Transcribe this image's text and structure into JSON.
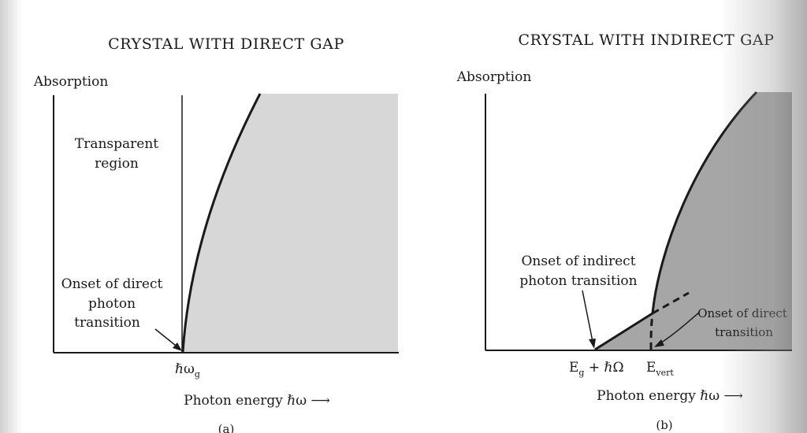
{
  "panel_a": {
    "title": "CRYSTAL WITH DIRECT GAP",
    "y_axis_label": "Absorption",
    "region_label_line1": "Transparent",
    "region_label_line2": "region",
    "onset_line1": "Onset of direct",
    "onset_line2": "photon",
    "onset_line3": "transition",
    "x_tick": "ℏω",
    "x_tick_sub": "g",
    "x_axis_label": "Photon energy ℏω ⟶",
    "caption": "(a)"
  },
  "panel_b": {
    "title": "CRYSTAL WITH INDIRECT GAP",
    "y_axis_label": "Absorption",
    "indirect_line1": "Onset of indirect",
    "indirect_line2": "photon transition",
    "direct_line1": "Onset of direct",
    "direct_line2": "transition",
    "x_tick_1": "E",
    "x_tick_1_sub": "g",
    "x_tick_1_rest": " + ℏΩ",
    "x_tick_2": "E",
    "x_tick_2_sub": "vert",
    "x_axis_label": "Photon energy ℏω ⟶",
    "caption": "(b)"
  },
  "colors": {
    "ink": "#1a1a1a",
    "shade_a": "#d7d7d7",
    "shade_b": "#a6a6a6"
  }
}
